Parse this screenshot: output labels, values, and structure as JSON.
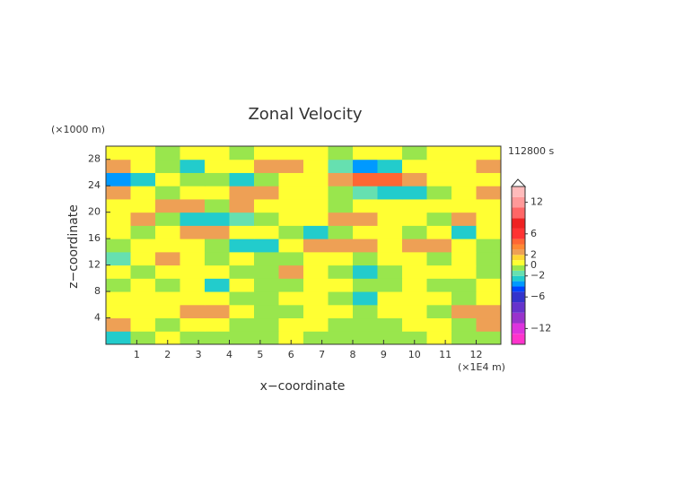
{
  "chart_data": {
    "type": "contour",
    "title": "Zonal Velocity",
    "y_unit_label": "(×1000 m)",
    "x_unit_label": "(×1E4 m)",
    "time_label": "112800 s",
    "x_label": "x−coordinate",
    "y_label": "z−coordinate",
    "xlim": [
      0,
      12.8
    ],
    "ylim": [
      0,
      30
    ],
    "xticks": [
      1,
      2,
      3,
      4,
      5,
      6,
      7,
      8,
      9,
      10,
      11,
      12
    ],
    "yticks": [
      4,
      8,
      12,
      16,
      20,
      24,
      28
    ],
    "x": [
      0.4,
      1.2,
      2.0,
      2.8,
      3.6,
      4.4,
      5.2,
      6.0,
      6.8,
      7.6,
      8.4,
      9.2,
      10.0,
      10.8,
      11.6,
      12.4
    ],
    "y": [
      1,
      3,
      5,
      7,
      9,
      11,
      13,
      15,
      17,
      19,
      21,
      23,
      25,
      27,
      29
    ],
    "values": [
      [
        -2.5,
        -0.5,
        0.5,
        -0.5,
        -0.5,
        -0.5,
        -0.5,
        0.5,
        -0.5,
        -0.5,
        -0.5,
        -0.5,
        -0.5,
        0.5,
        -0.5,
        -0.5
      ],
      [
        2.5,
        0.5,
        -0.5,
        0.5,
        0.5,
        -0.5,
        -0.5,
        0.5,
        0.5,
        -0.5,
        -0.5,
        -0.5,
        0.5,
        0.5,
        -0.5,
        2.5
      ],
      [
        0.5,
        0.5,
        0.5,
        2.5,
        2.5,
        0.5,
        -0.5,
        -0.5,
        0.5,
        0.5,
        -0.5,
        0.5,
        0.5,
        -0.5,
        2.5,
        2.5
      ],
      [
        0.5,
        0.5,
        0.5,
        0.5,
        0.5,
        -0.5,
        -0.5,
        0.5,
        0.5,
        -0.5,
        -2.5,
        0.5,
        0.5,
        0.5,
        -0.5,
        0.5
      ],
      [
        -0.5,
        0.5,
        -0.5,
        0.5,
        -2.5,
        0.5,
        -0.5,
        -0.5,
        0.5,
        0.5,
        -0.5,
        -0.5,
        0.5,
        -0.5,
        -0.5,
        0.5
      ],
      [
        0.5,
        -0.5,
        0.5,
        0.5,
        0.5,
        -0.5,
        -0.5,
        2.5,
        0.5,
        -0.5,
        -2.5,
        -0.5,
        0.5,
        0.5,
        0.5,
        -0.5
      ],
      [
        -1.5,
        0.5,
        2.5,
        0.5,
        -0.5,
        0.5,
        -0.5,
        -0.5,
        0.5,
        0.5,
        -0.5,
        0.5,
        0.5,
        -0.5,
        0.5,
        -0.5
      ],
      [
        -0.5,
        0.5,
        0.5,
        0.5,
        -0.5,
        -2.5,
        -2.5,
        0.5,
        2.5,
        2.5,
        2.5,
        0.5,
        2.5,
        2.5,
        0.5,
        -0.5
      ],
      [
        0.5,
        -0.5,
        0.5,
        2.5,
        2.5,
        0.5,
        0.5,
        -0.5,
        -2.5,
        -0.5,
        0.5,
        0.5,
        -0.5,
        0.5,
        -2.5,
        0.5
      ],
      [
        0.5,
        2.5,
        -0.5,
        -2.5,
        -2.5,
        -1.5,
        -0.5,
        0.5,
        0.5,
        2.5,
        2.5,
        0.5,
        0.5,
        -0.5,
        2.5,
        0.5
      ],
      [
        0.5,
        0.5,
        2.5,
        2.5,
        -0.5,
        2.5,
        0.5,
        0.5,
        0.5,
        -0.5,
        0.5,
        0.5,
        0.5,
        0.5,
        0.5,
        0.5
      ],
      [
        2.5,
        0.5,
        -0.5,
        0.5,
        0.5,
        2.5,
        2.5,
        0.5,
        0.5,
        -0.5,
        -1.5,
        -2.5,
        -2.5,
        -0.5,
        0.5,
        2.5
      ],
      [
        -3.5,
        -2.5,
        0.5,
        -0.5,
        -0.5,
        -2.5,
        -0.5,
        0.5,
        0.5,
        2.5,
        4.5,
        4.5,
        2.5,
        0.5,
        0.5,
        0.5
      ],
      [
        2.5,
        0.5,
        -0.5,
        -2.5,
        0.5,
        0.5,
        2.5,
        2.5,
        0.5,
        -1.5,
        -3.5,
        -2.5,
        0.5,
        0.5,
        0.5,
        2.5
      ],
      [
        0.5,
        0.5,
        -0.5,
        0.5,
        0.5,
        -0.5,
        0.5,
        0.5,
        0.5,
        -0.5,
        0.5,
        0.5,
        -0.5,
        0.5,
        0.5,
        0.5
      ]
    ],
    "clim": [
      -15,
      15
    ],
    "levels": [
      -15,
      -13,
      -11,
      -9,
      -7,
      -5,
      -4,
      -3,
      -2,
      -1,
      0,
      1,
      2,
      3,
      4,
      5,
      7,
      9,
      11,
      13,
      15
    ],
    "level_colors": [
      "#ff33cc",
      "#dd33dd",
      "#9933cc",
      "#6633cc",
      "#3333cc",
      "#0044ff",
      "#0099ff",
      "#22cccc",
      "#66e0b0",
      "#99e64d",
      "#ffff33",
      "#ffd733",
      "#eea055",
      "#ff8833",
      "#ff6633",
      "#ff3333",
      "#ee2222",
      "#ff6666",
      "#ff9999",
      "#ffbbbb"
    ],
    "cbar_ticks": [
      {
        "value": -12,
        "label": "−12"
      },
      {
        "value": -6,
        "label": "−6"
      },
      {
        "value": -2,
        "label": "−2"
      },
      0,
      2,
      6,
      12
    ]
  }
}
